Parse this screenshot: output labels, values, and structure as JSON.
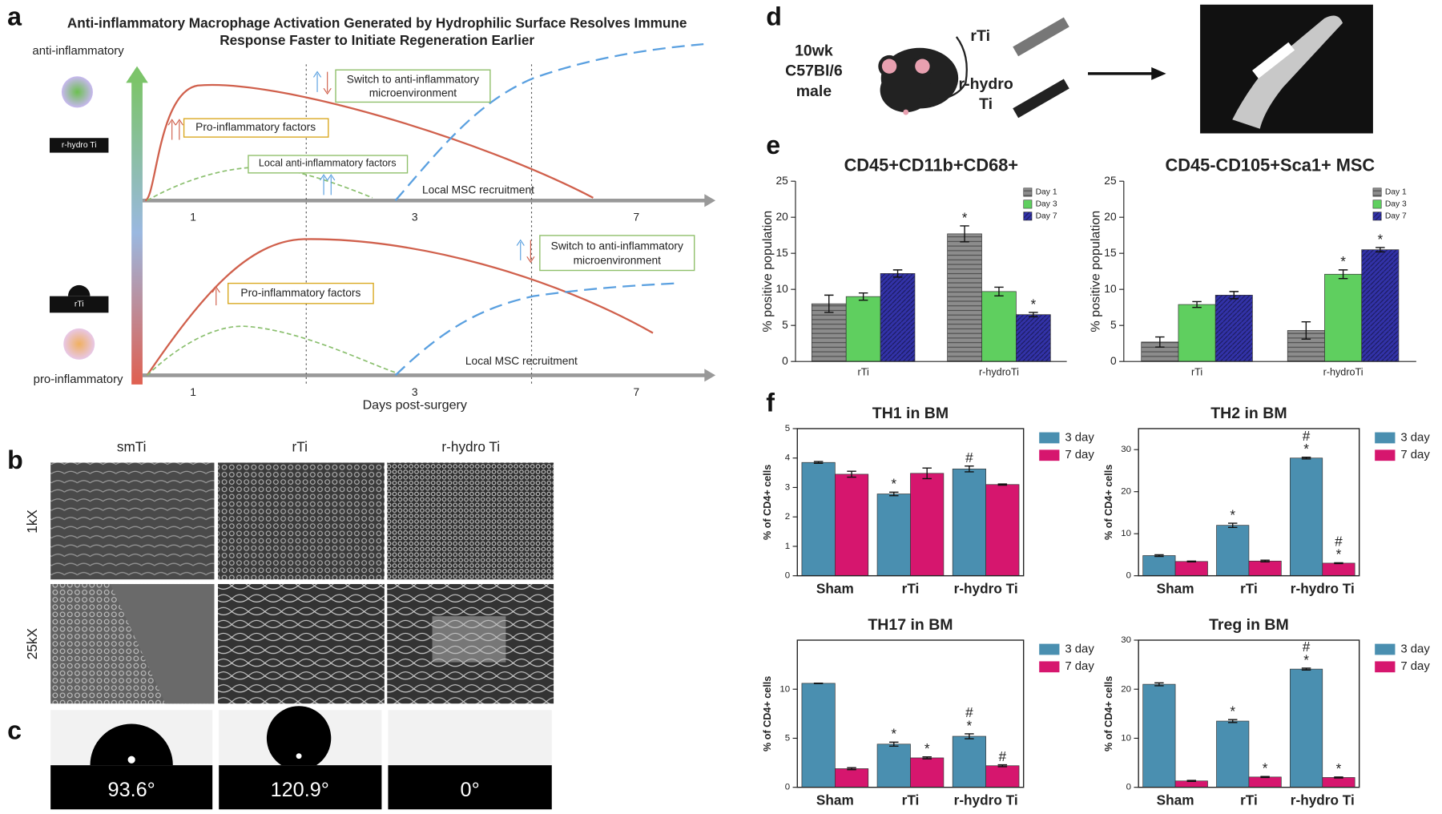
{
  "figure": {
    "panel_letters": [
      "a",
      "b",
      "c",
      "d",
      "e",
      "f"
    ],
    "panel_a": {
      "title_lines": [
        "Anti-inflammatory Macrophage Activation Generated by Hydrophilic Surface Resolves Immune",
        "Response Faster to Initiate Regeneration Earlier"
      ],
      "anti_label": "anti-inflammatory",
      "pro_label": "pro-inflammatory",
      "hydro_sample": "r-hydro Ti",
      "rti_sample": "rTi",
      "top": {
        "switch": [
          "Switch to anti-inflammatory",
          "microenvironment"
        ],
        "pro": "Pro-inflammatory  factors",
        "local_anti": "Local anti-inflammatory factors",
        "msc": "Local MSC recruitment",
        "days": [
          "1",
          "3",
          "7"
        ]
      },
      "bottom": {
        "switch": [
          "Switch to anti-inflammatory",
          "microenvironment"
        ],
        "pro": "Pro-inflammatory  factors",
        "msc": "Local MSC recruitment",
        "days": [
          "1",
          "3",
          "7"
        ]
      },
      "x_label": "Days post-surgery"
    },
    "panel_b": {
      "columns": [
        "smTi",
        "rTi",
        "r-hydro Ti"
      ],
      "rows": [
        "1kX",
        "25kX"
      ]
    },
    "panel_c": {
      "angles": [
        "93.6°",
        "120.9°",
        "0°"
      ]
    },
    "panel_d": {
      "mouse": [
        "10wk",
        "C57Bl/6",
        "male"
      ],
      "implant_1": "rTi",
      "implant_2": [
        "r-hydro",
        "Ti"
      ]
    }
  },
  "chart_data": [
    {
      "type": "bar",
      "title": "CD45+CD11b+CD68+",
      "y_label": "% positive population",
      "categories": [
        "rTi",
        "r-hydroTi"
      ],
      "ylim": [
        0,
        25
      ],
      "yticks": [
        0,
        5,
        10,
        15,
        20,
        25
      ],
      "legend": "upper right",
      "frame": false,
      "series": [
        {
          "name": "Day 1",
          "color": "#8c8c8c",
          "hatch": "horizontal",
          "values": [
            8,
            17.7
          ],
          "errors": [
            1.2,
            1.1
          ],
          "significance": [
            null,
            [
              "*"
            ]
          ]
        },
        {
          "name": "Day 3",
          "color": "#5fcf5f",
          "values": [
            9,
            9.7
          ],
          "errors": [
            0.5,
            0.6
          ],
          "significance": [
            null,
            null
          ]
        },
        {
          "name": "Day 7",
          "color": "#3232a8",
          "hatch": "diagonal",
          "values": [
            12.2,
            6.5
          ],
          "errors": [
            0.5,
            0.3
          ],
          "significance": [
            null,
            [
              "*"
            ]
          ]
        }
      ]
    },
    {
      "type": "bar",
      "title": "CD45-CD105+Sca1+ MSC",
      "y_label": "% positive population",
      "categories": [
        "rTi",
        "r-hydroTi"
      ],
      "ylim": [
        0,
        25
      ],
      "yticks": [
        0,
        5,
        10,
        15,
        20,
        25
      ],
      "legend": "upper right",
      "frame": false,
      "series": [
        {
          "name": "Day 1",
          "color": "#8c8c8c",
          "hatch": "horizontal",
          "values": [
            2.7,
            4.3
          ],
          "errors": [
            0.7,
            1.2
          ],
          "significance": [
            null,
            null
          ]
        },
        {
          "name": "Day 3",
          "color": "#5fcf5f",
          "values": [
            7.9,
            12.1
          ],
          "errors": [
            0.4,
            0.6
          ],
          "significance": [
            null,
            [
              "*"
            ]
          ]
        },
        {
          "name": "Day 7",
          "color": "#3232a8",
          "hatch": "diagonal",
          "values": [
            9.2,
            15.5
          ],
          "errors": [
            0.5,
            0.3
          ],
          "significance": [
            null,
            [
              "*"
            ]
          ]
        }
      ]
    },
    {
      "type": "bar",
      "title": "TH1 in BM",
      "y_label": "% of CD4+ cells",
      "categories": [
        "Sham",
        "rTi",
        "r-hydro Ti"
      ],
      "ylim": [
        0,
        5
      ],
      "yticks": [
        0,
        1,
        2,
        3,
        4,
        5
      ],
      "legend": "outside right",
      "frame": true,
      "series": [
        {
          "name": "3 day",
          "color": "#4a8fb0",
          "values": [
            3.85,
            2.78,
            3.63
          ],
          "errors": [
            0.03,
            0.06,
            0.1
          ],
          "significance": [
            null,
            [
              "*"
            ],
            [
              "#"
            ]
          ]
        },
        {
          "name": "7 day",
          "color": "#d6166e",
          "values": [
            3.45,
            3.48,
            3.1
          ],
          "errors": [
            0.1,
            0.18,
            0.02
          ],
          "significance": [
            null,
            null,
            null
          ]
        }
      ]
    },
    {
      "type": "bar",
      "title": "TH2 in BM",
      "y_label": "% of CD4+ cells",
      "categories": [
        "Sham",
        "rTi",
        "r-hydro Ti"
      ],
      "ylim": [
        0,
        35
      ],
      "yticks": [
        0,
        10,
        20,
        30
      ],
      "legend": "outside right",
      "frame": true,
      "series": [
        {
          "name": "3 day",
          "color": "#4a8fb0",
          "values": [
            4.8,
            12,
            28
          ],
          "errors": [
            0.2,
            0.5,
            0.2
          ],
          "significance": [
            null,
            [
              "*"
            ],
            [
              "#",
              "*"
            ]
          ]
        },
        {
          "name": "7 day",
          "color": "#d6166e",
          "values": [
            3.4,
            3.5,
            3
          ],
          "errors": [
            0.1,
            0.2,
            0.1
          ],
          "significance": [
            null,
            null,
            [
              "#",
              "*"
            ]
          ]
        }
      ]
    },
    {
      "type": "bar",
      "title": "TH17 in BM",
      "y_label": "% of CD4+ cells",
      "categories": [
        "Sham",
        "rTi",
        "r-hydro Ti"
      ],
      "ylim": [
        0,
        15
      ],
      "yticks": [
        0,
        5,
        10
      ],
      "legend": "outside right",
      "frame": true,
      "series": [
        {
          "name": "3 day",
          "color": "#4a8fb0",
          "values": [
            10.6,
            4.4,
            5.2
          ],
          "errors": [
            0.02,
            0.2,
            0.25
          ],
          "significance": [
            null,
            [
              "*"
            ],
            [
              "#",
              "*"
            ]
          ]
        },
        {
          "name": "7 day",
          "color": "#d6166e",
          "values": [
            1.9,
            3,
            2.2
          ],
          "errors": [
            0.1,
            0.1,
            0.1
          ],
          "significance": [
            null,
            [
              "*"
            ],
            [
              "#"
            ]
          ]
        }
      ]
    },
    {
      "type": "bar",
      "title": "Treg in BM",
      "y_label": "% of CD4+ cells",
      "categories": [
        "Sham",
        "rTi",
        "r-hydro Ti"
      ],
      "ylim": [
        0,
        30
      ],
      "yticks": [
        0,
        10,
        20,
        30
      ],
      "legend": "outside right",
      "frame": true,
      "series": [
        {
          "name": "3 day",
          "color": "#4a8fb0",
          "values": [
            21,
            13.5,
            24.1
          ],
          "errors": [
            0.3,
            0.3,
            0.2
          ],
          "significance": [
            null,
            [
              "*"
            ],
            [
              "#",
              "*"
            ]
          ]
        },
        {
          "name": "7 day",
          "color": "#d6166e",
          "values": [
            1.3,
            2.1,
            2
          ],
          "errors": [
            0.1,
            0.1,
            0.1
          ],
          "significance": [
            null,
            [
              "*"
            ],
            [
              "*"
            ]
          ]
        }
      ]
    }
  ]
}
